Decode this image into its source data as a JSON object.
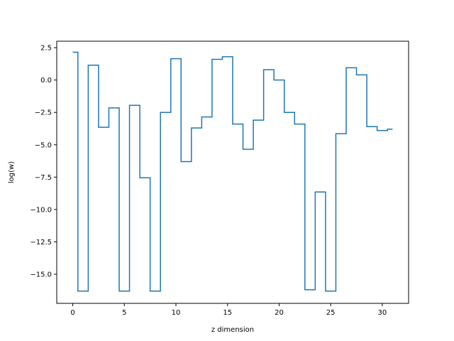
{
  "chart_data": {
    "type": "line",
    "drawstyle": "steps-mid",
    "xlabel": "z dimension",
    "ylabel": "log(w)",
    "xlim": [
      -1.55,
      32.55
    ],
    "ylim": [
      -17.25,
      3.0
    ],
    "grid": false,
    "xticks": [
      0,
      5,
      10,
      15,
      20,
      25,
      30
    ],
    "yticks": [
      2.5,
      0.0,
      -2.5,
      -5.0,
      -7.5,
      -10.0,
      -12.5,
      -15.0
    ],
    "ytick_labels": [
      "2.5",
      "0.0",
      "−2.5",
      "−5.0",
      "−7.5",
      "−10.0",
      "−12.5",
      "−15.0"
    ],
    "series": [
      {
        "color": "#1f77b4",
        "x": [
          0,
          1,
          2,
          3,
          4,
          5,
          6,
          7,
          8,
          9,
          10,
          11,
          12,
          13,
          14,
          15,
          16,
          17,
          18,
          19,
          20,
          21,
          22,
          23,
          24,
          25,
          26,
          27,
          28,
          29,
          30,
          31
        ],
        "y": [
          2.15,
          -16.3,
          1.15,
          -3.65,
          -2.15,
          -16.3,
          -1.95,
          -7.55,
          -16.3,
          -2.5,
          1.65,
          -6.3,
          -3.7,
          -2.85,
          1.6,
          1.8,
          -3.4,
          -5.35,
          -3.1,
          0.8,
          0.0,
          -2.5,
          -3.4,
          -16.2,
          -8.65,
          -16.3,
          -4.15,
          0.95,
          0.4,
          -3.6,
          -3.9,
          -3.8
        ]
      }
    ]
  }
}
